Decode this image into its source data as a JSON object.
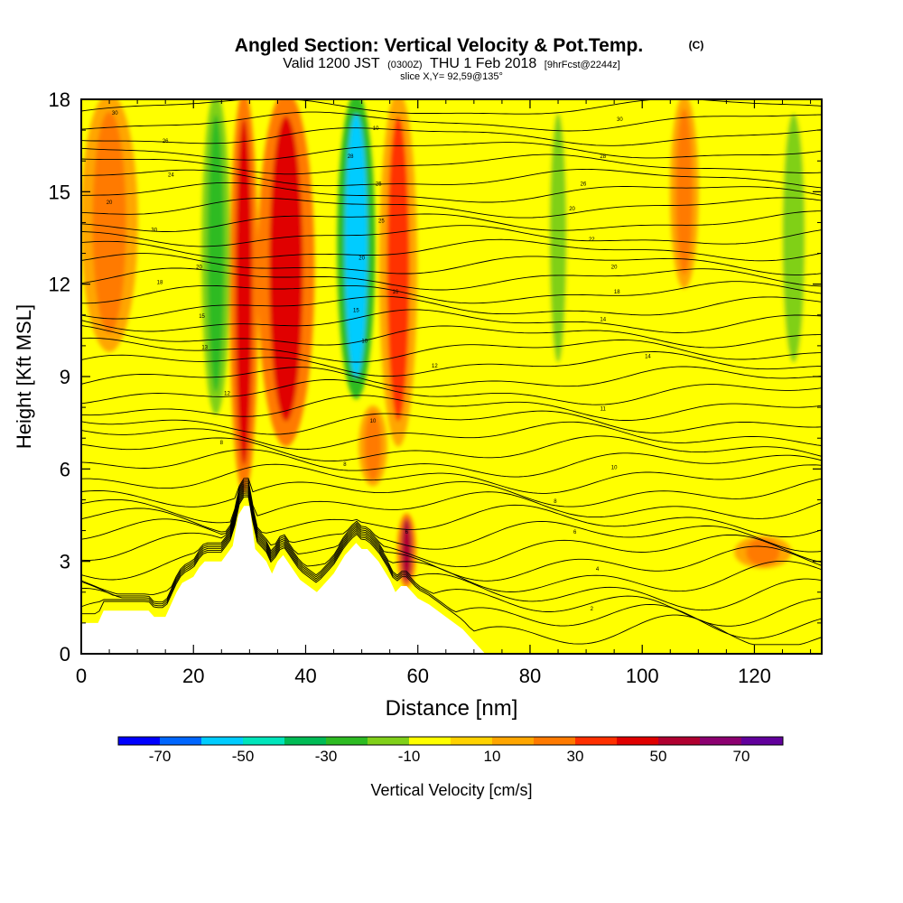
{
  "chart_data": {
    "type": "heatmap",
    "title": "Angled Section: Vertical Velocity & Pot.Temp.",
    "title_mark": "(C)",
    "subtitle": {
      "valid": "Valid 1200 JST",
      "utc": "(0300Z)",
      "date": "THU 1 Feb 2018",
      "fcst": "[9hrFcst@2244z]"
    },
    "slice_label": "slice X,Y= 92,59@135°",
    "xlabel": "Distance [nm]",
    "ylabel": "Height [Kft MSL]",
    "xlim": [
      0,
      132
    ],
    "ylim": [
      0,
      18
    ],
    "x_ticks": [
      "0",
      "20",
      "40",
      "60",
      "80",
      "100",
      "120"
    ],
    "y_ticks": [
      "0",
      "3",
      "6",
      "9",
      "12",
      "15",
      "18"
    ],
    "x_tick_values": [
      0,
      20,
      40,
      60,
      80,
      100,
      120
    ],
    "y_tick_values": [
      0,
      3,
      6,
      9,
      12,
      15,
      18
    ],
    "grid": false,
    "background_field": 5,
    "updraft_cores": [
      {
        "x": 29,
        "y_bottom": 5.5,
        "y_top": 18,
        "width": 3,
        "value": 45
      },
      {
        "x": 36.5,
        "y_bottom": 7,
        "y_top": 18,
        "width": 6,
        "value": 45
      },
      {
        "x": 56.5,
        "y_bottom": 7,
        "y_top": 18,
        "width": 4,
        "value": 30
      },
      {
        "x": 58,
        "y_bottom": 2.2,
        "y_top": 4.5,
        "width": 2,
        "value": 55
      },
      {
        "x": 5,
        "y_bottom": 10,
        "y_top": 18,
        "width": 6,
        "value": 20
      },
      {
        "x": 107.5,
        "y_bottom": 12,
        "y_top": 18,
        "width": 3,
        "value": 20
      },
      {
        "x": 121.5,
        "y_bottom": 2.8,
        "y_top": 3.8,
        "width": 6,
        "value": 20
      },
      {
        "x": 52,
        "y_bottom": 5.5,
        "y_top": 8,
        "width": 3,
        "value": 20
      }
    ],
    "downdraft_cores": [
      {
        "x": 49,
        "y_bottom": 8.5,
        "y_top": 18,
        "width": 4,
        "value": -60
      },
      {
        "x": 24,
        "y_bottom": 8,
        "y_top": 18,
        "width": 3,
        "value": -30
      },
      {
        "x": 85,
        "y_bottom": 9,
        "y_top": 18,
        "width": 3,
        "value": -20
      },
      {
        "x": 127,
        "y_bottom": 9,
        "y_top": 18,
        "width": 4,
        "value": -15
      },
      {
        "x": 34,
        "y_bottom": 2,
        "y_top": 5,
        "width": 3,
        "value": -10
      },
      {
        "x": 85,
        "y_bottom": 0.8,
        "y_top": 3,
        "width": 3,
        "value": -10
      }
    ],
    "theta_isentropes_count": 38,
    "terrain_x": [
      0,
      3,
      4,
      8,
      12,
      13,
      15,
      16,
      17,
      18,
      20,
      21,
      22,
      25,
      27,
      28,
      29,
      30,
      31,
      33,
      34,
      35,
      36,
      39,
      42,
      43,
      45,
      47,
      49,
      50,
      51,
      53,
      55,
      56,
      57,
      58,
      60,
      62,
      65,
      68,
      70,
      72,
      132
    ],
    "terrain_y": [
      1.0,
      1.0,
      1.4,
      1.4,
      1.4,
      1.2,
      1.2,
      1.6,
      2.0,
      2.3,
      2.5,
      2.8,
      3.0,
      3.0,
      3.5,
      4.5,
      4.8,
      4.8,
      3.4,
      3.0,
      2.6,
      3.0,
      3.2,
      2.4,
      2.0,
      2.2,
      2.6,
      3.2,
      3.6,
      3.4,
      3.4,
      3.0,
      2.4,
      2.0,
      2.2,
      2.2,
      1.8,
      1.6,
      1.2,
      0.8,
      0.4,
      0.0,
      0.0
    ],
    "contour_labels": [
      {
        "text": "30",
        "x": 6,
        "y": 17.5
      },
      {
        "text": "26",
        "x": 15,
        "y": 16.6
      },
      {
        "text": "24",
        "x": 16,
        "y": 15.5
      },
      {
        "text": "20",
        "x": 5,
        "y": 14.6
      },
      {
        "text": "30",
        "x": 13,
        "y": 13.7
      },
      {
        "text": "18",
        "x": 14,
        "y": 12.0
      },
      {
        "text": "20",
        "x": 21,
        "y": 12.5
      },
      {
        "text": "15",
        "x": 21.5,
        "y": 10.9
      },
      {
        "text": "13",
        "x": 22,
        "y": 9.9
      },
      {
        "text": "12",
        "x": 26,
        "y": 8.4
      },
      {
        "text": "8",
        "x": 25,
        "y": 6.8
      },
      {
        "text": "10",
        "x": 52.5,
        "y": 17.0
      },
      {
        "text": "28",
        "x": 48,
        "y": 16.1
      },
      {
        "text": "25",
        "x": 53,
        "y": 15.2
      },
      {
        "text": "25",
        "x": 53.5,
        "y": 14.0
      },
      {
        "text": "20",
        "x": 50,
        "y": 12.8
      },
      {
        "text": "16",
        "x": 56,
        "y": 11.7
      },
      {
        "text": "15",
        "x": 49,
        "y": 11.1
      },
      {
        "text": "10",
        "x": 50.5,
        "y": 10.1
      },
      {
        "text": "12",
        "x": 63,
        "y": 9.3
      },
      {
        "text": "10",
        "x": 52,
        "y": 7.5
      },
      {
        "text": "8",
        "x": 47,
        "y": 6.1
      },
      {
        "text": "6",
        "x": 58,
        "y": 3.9
      },
      {
        "text": "30",
        "x": 96,
        "y": 17.3
      },
      {
        "text": "28",
        "x": 93,
        "y": 16.1
      },
      {
        "text": "26",
        "x": 89.5,
        "y": 15.2
      },
      {
        "text": "20",
        "x": 87.5,
        "y": 14.4
      },
      {
        "text": "22",
        "x": 91,
        "y": 13.4
      },
      {
        "text": "20",
        "x": 95,
        "y": 12.5
      },
      {
        "text": "18",
        "x": 95.5,
        "y": 11.7
      },
      {
        "text": "14",
        "x": 93,
        "y": 10.8
      },
      {
        "text": "14",
        "x": 101,
        "y": 9.6
      },
      {
        "text": "11",
        "x": 93,
        "y": 7.9
      },
      {
        "text": "10",
        "x": 95,
        "y": 6.0
      },
      {
        "text": "8",
        "x": 84.5,
        "y": 4.9
      },
      {
        "text": "6",
        "x": 88,
        "y": 3.9
      },
      {
        "text": "4",
        "x": 92,
        "y": 2.7
      },
      {
        "text": "2",
        "x": 91,
        "y": 1.4
      }
    ],
    "colorbar": {
      "label": "Vertical Velocity [cm/s]",
      "tick_labels": [
        "-70",
        "-50",
        "-30",
        "-10",
        "10",
        "30",
        "50",
        "70"
      ],
      "bin_edges": [
        -80,
        -70,
        -60,
        -50,
        -40,
        -30,
        -20,
        -10,
        0,
        10,
        20,
        30,
        40,
        50,
        60,
        70,
        80
      ],
      "colors": [
        "#0000ff",
        "#0066ff",
        "#00ccff",
        "#00e5bb",
        "#00bb55",
        "#2dbb22",
        "#80d019",
        "#ffff00",
        "#ffd200",
        "#ffa600",
        "#ff7a00",
        "#ff3000",
        "#e00000",
        "#b00030",
        "#8c0070",
        "#62009c"
      ]
    }
  }
}
